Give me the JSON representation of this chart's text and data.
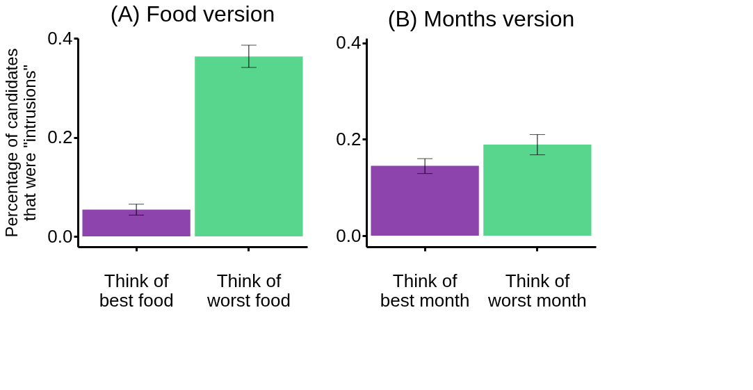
{
  "chart_data": [
    {
      "type": "bar",
      "title": "(A)   Food version",
      "ylabel": "Percentage of candidates\nthat were \"intrusions\"",
      "categories": [
        "Think of\nbest food",
        "Think of\nworst food"
      ],
      "values": [
        0.054,
        0.363
      ],
      "colors": [
        "#8e44ad",
        "#58d68d"
      ],
      "errors": [
        [
          0.043,
          0.065
        ],
        [
          0.341,
          0.386
        ]
      ],
      "ylim": [
        -0.021,
        0.4
      ],
      "yticks": [
        {
          "value": 0,
          "label": "0.0"
        },
        {
          "value": 0.2,
          "label": "0.2"
        },
        {
          "value": 0.4,
          "label": "0.4"
        }
      ],
      "grid": false
    },
    {
      "type": "bar",
      "title": "(B)   Months version",
      "categories": [
        "Think of\nbest month",
        "Think of\nworst month"
      ],
      "values": [
        0.145,
        0.189
      ],
      "colors": [
        "#8e44ad",
        "#58d68d"
      ],
      "errors": [
        [
          0.129,
          0.16
        ],
        [
          0.168,
          0.21
        ]
      ],
      "ylim": [
        -0.023,
        0.41
      ],
      "yticks": [
        {
          "value": 0,
          "label": "0.0"
        },
        {
          "value": 0.2,
          "label": "0.2"
        },
        {
          "value": 0.4,
          "label": "0.4"
        }
      ],
      "grid": false
    }
  ]
}
